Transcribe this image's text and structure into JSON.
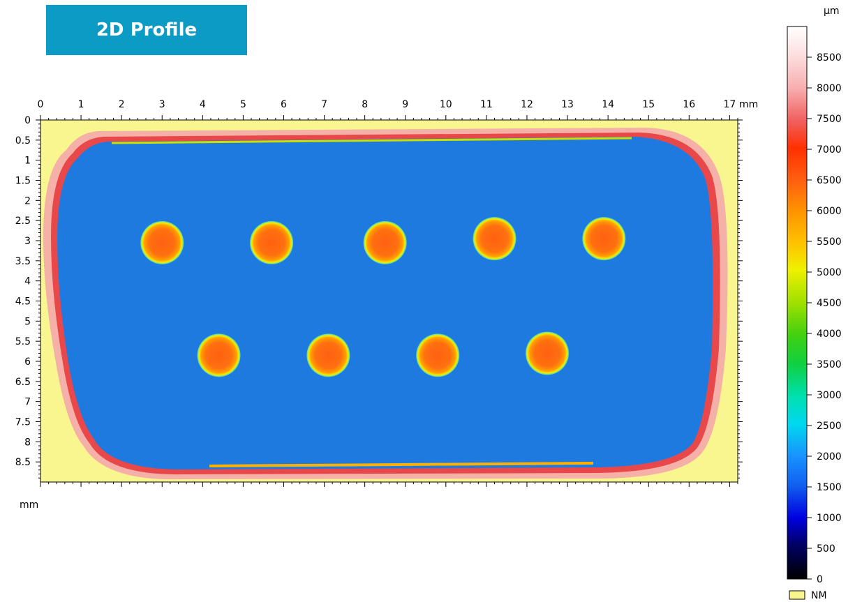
{
  "badge": {
    "label": "2D Profile"
  },
  "chart_data": {
    "type": "heatmap",
    "title": "2D Profile",
    "x_unit": "mm",
    "y_unit": "mm",
    "x_ticks": [
      0,
      1,
      2,
      3,
      4,
      5,
      6,
      7,
      8,
      9,
      10,
      11,
      12,
      13,
      14,
      15,
      16,
      17
    ],
    "y_ticks": [
      0,
      0.5,
      1,
      1.5,
      2,
      2.5,
      3,
      3.5,
      4,
      4.5,
      5,
      5.5,
      6,
      6.5,
      7,
      7.5,
      8,
      8.5
    ],
    "xlim": [
      0,
      17.2
    ],
    "ylim": [
      0,
      9.0
    ],
    "colorbar": {
      "unit": "µm",
      "ticks": [
        0,
        500,
        1000,
        1500,
        2000,
        2500,
        3000,
        3500,
        4000,
        4500,
        5000,
        5500,
        6000,
        6500,
        7000,
        7500,
        8000,
        8500
      ],
      "range": [
        0,
        9000
      ],
      "nm_label": "NM",
      "nm_color": "#faf68f"
    },
    "background_value": 1600,
    "part_outline_value": 7800,
    "features": [
      {
        "x": 3.0,
        "y": 3.05,
        "value": 6400
      },
      {
        "x": 5.7,
        "y": 3.05,
        "value": 6400
      },
      {
        "x": 8.5,
        "y": 3.05,
        "value": 6400
      },
      {
        "x": 11.2,
        "y": 2.95,
        "value": 6400
      },
      {
        "x": 13.9,
        "y": 2.95,
        "value": 6400
      },
      {
        "x": 4.4,
        "y": 5.85,
        "value": 6400
      },
      {
        "x": 7.1,
        "y": 5.85,
        "value": 6400
      },
      {
        "x": 9.8,
        "y": 5.85,
        "value": 6400
      },
      {
        "x": 12.5,
        "y": 5.8,
        "value": 6400
      }
    ],
    "grid": false
  }
}
